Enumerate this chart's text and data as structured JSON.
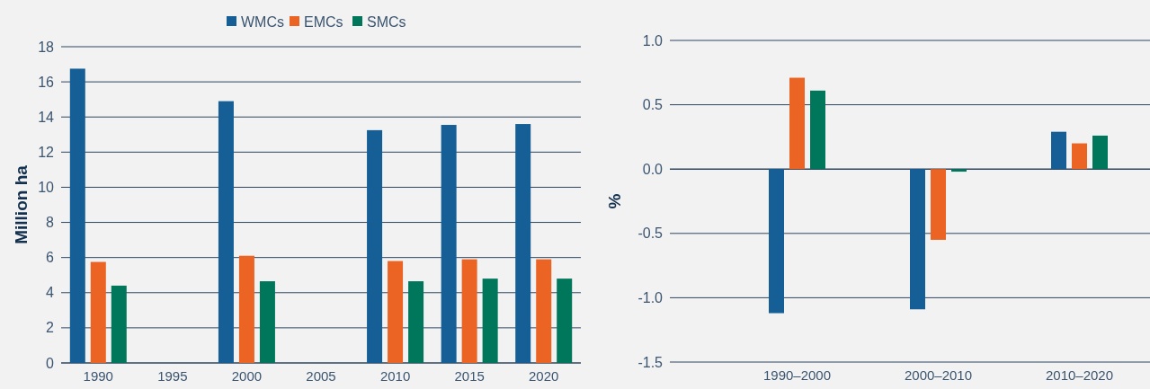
{
  "chart_data": [
    {
      "type": "bar",
      "ylabel": "Million ha",
      "categories": [
        "1990",
        "1995",
        "2000",
        "2005",
        "2010",
        "2015",
        "2020"
      ],
      "series": [
        {
          "name": "WMCs",
          "color": "#155f96",
          "values": [
            16.75,
            null,
            14.9,
            null,
            13.25,
            13.55,
            13.6
          ]
        },
        {
          "name": "EMCs",
          "color": "#ec6424",
          "values": [
            5.75,
            null,
            6.1,
            null,
            5.8,
            5.9,
            5.9
          ]
        },
        {
          "name": "SMCs",
          "color": "#00775b",
          "values": [
            4.4,
            null,
            4.65,
            null,
            4.65,
            4.8,
            4.8
          ]
        }
      ],
      "ylim": [
        0,
        18
      ],
      "yticks": [
        0,
        2,
        4,
        6,
        8,
        10,
        12,
        14,
        16,
        18
      ],
      "grid": "y",
      "legend": "top"
    },
    {
      "type": "bar",
      "ylabel": "%",
      "categories": [
        "1990–2000",
        "2000–2010",
        "2010–2020"
      ],
      "series": [
        {
          "color": "#155f96",
          "values": [
            -1.12,
            -1.09,
            0.29
          ]
        },
        {
          "color": "#ec6424",
          "values": [
            0.71,
            -0.55,
            0.2
          ]
        },
        {
          "color": "#00775b",
          "values": [
            0.61,
            -0.02,
            0.26
          ]
        }
      ],
      "ylim": [
        -1.5,
        1.0
      ],
      "yticks": [
        -1.5,
        {
          "value": -1,
          "label": "-1.0"
        },
        -0.5,
        {
          "value": 0,
          "label": "0.0"
        },
        0.5,
        {
          "value": 1,
          "label": "1.0"
        }
      ],
      "grid": "y"
    }
  ]
}
